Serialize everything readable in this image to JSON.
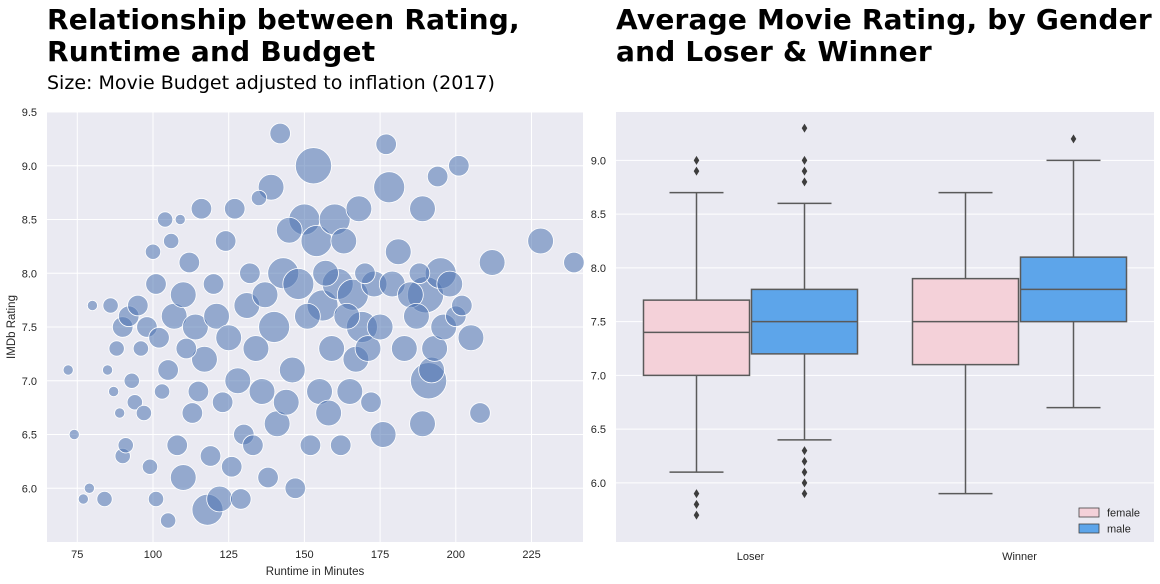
{
  "left": {
    "title_line1": "Relationship between Rating,",
    "title_line2": "Runtime and Budget",
    "subtitle": "Size: Movie Budget adjusted to inflation (2017)"
  },
  "right": {
    "title_line1": "Average Movie Rating, by Gender",
    "title_line2": "and Loser & Winner"
  },
  "colors": {
    "background": "#eaeaf2",
    "grid": "#ffffff",
    "scatter_point": "#4c72b0",
    "female": "#f4d1d9",
    "male": "#5da5ea",
    "box_edge": "#5a5a5a"
  },
  "chart_data": [
    {
      "type": "scatter",
      "title": "Relationship between Rating, Runtime and Budget",
      "subtitle": "Size: Movie Budget adjusted to inflation (2017)",
      "xlabel": "Runtime in Minutes",
      "ylabel": "IMDb Rating",
      "xlim": [
        65,
        242
      ],
      "ylim": [
        5.5,
        9.5
      ],
      "xticks": [
        75,
        100,
        125,
        150,
        175,
        200,
        225
      ],
      "yticks": [
        6.0,
        6.5,
        7.0,
        7.5,
        8.0,
        8.5,
        9.0,
        9.5
      ],
      "grid": true,
      "size_encoding": "budget",
      "points": [
        [
          72,
          7.1,
          1
        ],
        [
          74,
          6.5,
          1
        ],
        [
          77,
          5.9,
          1
        ],
        [
          79,
          6.0,
          1
        ],
        [
          80,
          7.7,
          1
        ],
        [
          84,
          5.9,
          2
        ],
        [
          85,
          7.1,
          1
        ],
        [
          86,
          7.7,
          2
        ],
        [
          87,
          6.9,
          1
        ],
        [
          88,
          7.3,
          2
        ],
        [
          89,
          6.7,
          1
        ],
        [
          90,
          6.3,
          2
        ],
        [
          90,
          7.5,
          3
        ],
        [
          91,
          6.4,
          2
        ],
        [
          92,
          7.6,
          3
        ],
        [
          93,
          7.0,
          2
        ],
        [
          94,
          6.8,
          2
        ],
        [
          95,
          7.7,
          3
        ],
        [
          96,
          7.3,
          2
        ],
        [
          97,
          6.7,
          2
        ],
        [
          98,
          7.5,
          3
        ],
        [
          99,
          6.2,
          2
        ],
        [
          100,
          8.2,
          2
        ],
        [
          101,
          7.9,
          3
        ],
        [
          101,
          5.9,
          2
        ],
        [
          102,
          7.4,
          3
        ],
        [
          103,
          6.9,
          2
        ],
        [
          104,
          8.5,
          2
        ],
        [
          105,
          7.1,
          3
        ],
        [
          105,
          5.7,
          2
        ],
        [
          106,
          8.3,
          2
        ],
        [
          107,
          7.6,
          4
        ],
        [
          108,
          6.4,
          3
        ],
        [
          109,
          8.5,
          1
        ],
        [
          110,
          7.8,
          4
        ],
        [
          110,
          6.1,
          4
        ],
        [
          111,
          7.3,
          3
        ],
        [
          112,
          8.1,
          3
        ],
        [
          113,
          6.7,
          3
        ],
        [
          114,
          7.5,
          4
        ],
        [
          115,
          6.9,
          3
        ],
        [
          116,
          8.6,
          3
        ],
        [
          117,
          7.2,
          4
        ],
        [
          118,
          5.8,
          5
        ],
        [
          119,
          6.3,
          3
        ],
        [
          120,
          7.9,
          3
        ],
        [
          121,
          7.6,
          4
        ],
        [
          122,
          5.9,
          4
        ],
        [
          123,
          6.8,
          3
        ],
        [
          124,
          8.3,
          3
        ],
        [
          125,
          7.4,
          4
        ],
        [
          126,
          6.2,
          3
        ],
        [
          127,
          8.6,
          3
        ],
        [
          128,
          7.0,
          4
        ],
        [
          129,
          5.9,
          3
        ],
        [
          130,
          6.5,
          3
        ],
        [
          131,
          7.7,
          4
        ],
        [
          132,
          8.0,
          3
        ],
        [
          133,
          6.4,
          3
        ],
        [
          134,
          7.3,
          4
        ],
        [
          135,
          8.7,
          2
        ],
        [
          136,
          6.9,
          4
        ],
        [
          137,
          7.8,
          4
        ],
        [
          138,
          6.1,
          3
        ],
        [
          139,
          8.8,
          4
        ],
        [
          140,
          7.5,
          5
        ],
        [
          141,
          6.6,
          4
        ],
        [
          142,
          9.3,
          3
        ],
        [
          143,
          8.0,
          5
        ],
        [
          144,
          6.8,
          4
        ],
        [
          145,
          8.4,
          4
        ],
        [
          146,
          7.1,
          4
        ],
        [
          147,
          6.0,
          3
        ],
        [
          148,
          7.9,
          5
        ],
        [
          150,
          8.5,
          5
        ],
        [
          151,
          7.6,
          4
        ],
        [
          152,
          6.4,
          3
        ],
        [
          153,
          9.0,
          6
        ],
        [
          154,
          8.3,
          5
        ],
        [
          155,
          6.9,
          4
        ],
        [
          156,
          7.7,
          5
        ],
        [
          157,
          8.0,
          4
        ],
        [
          158,
          6.7,
          4
        ],
        [
          159,
          7.3,
          4
        ],
        [
          160,
          8.5,
          5
        ],
        [
          161,
          7.9,
          5
        ],
        [
          162,
          6.4,
          3
        ],
        [
          163,
          8.3,
          4
        ],
        [
          164,
          7.6,
          4
        ],
        [
          165,
          6.9,
          4
        ],
        [
          166,
          7.8,
          5
        ],
        [
          167,
          7.2,
          4
        ],
        [
          168,
          8.6,
          4
        ],
        [
          169,
          7.5,
          5
        ],
        [
          170,
          8.0,
          3
        ],
        [
          171,
          7.3,
          4
        ],
        [
          172,
          6.8,
          3
        ],
        [
          173,
          7.9,
          4
        ],
        [
          175,
          7.5,
          4
        ],
        [
          176,
          6.5,
          4
        ],
        [
          177,
          9.2,
          3
        ],
        [
          178,
          8.8,
          5
        ],
        [
          179,
          7.9,
          4
        ],
        [
          181,
          8.2,
          4
        ],
        [
          183,
          7.3,
          4
        ],
        [
          185,
          7.8,
          4
        ],
        [
          187,
          7.6,
          4
        ],
        [
          188,
          8.0,
          3
        ],
        [
          189,
          8.6,
          4
        ],
        [
          189,
          6.6,
          4
        ],
        [
          190,
          7.8,
          6
        ],
        [
          191,
          7.0,
          6
        ],
        [
          192,
          7.1,
          4
        ],
        [
          193,
          7.3,
          4
        ],
        [
          194,
          8.9,
          3
        ],
        [
          195,
          8.0,
          5
        ],
        [
          196,
          7.5,
          4
        ],
        [
          198,
          7.9,
          4
        ],
        [
          200,
          7.6,
          3
        ],
        [
          201,
          9.0,
          3
        ],
        [
          202,
          7.7,
          3
        ],
        [
          205,
          7.4,
          4
        ],
        [
          208,
          6.7,
          3
        ],
        [
          212,
          8.1,
          4
        ],
        [
          228,
          8.3,
          4
        ],
        [
          239,
          8.1,
          3
        ]
      ]
    },
    {
      "type": "box",
      "title": "Average Movie Rating, by Gender and Loser & Winner",
      "categories": [
        "Loser",
        "Winner"
      ],
      "ylim": [
        5.45,
        9.45
      ],
      "yticks": [
        6.0,
        6.5,
        7.0,
        7.5,
        8.0,
        8.5,
        9.0
      ],
      "grid": true,
      "legend_position": "bottom-right",
      "series": [
        {
          "name": "female",
          "color": "#f4d1d9",
          "boxes": [
            {
              "category": "Loser",
              "whisker_low": 6.1,
              "q1": 7.0,
              "median": 7.4,
              "q3": 7.7,
              "whisker_high": 8.7,
              "outliers": [
                9.0,
                8.9,
                5.9,
                5.8,
                5.7
              ]
            },
            {
              "category": "Winner",
              "whisker_low": 5.9,
              "q1": 7.1,
              "median": 7.5,
              "q3": 7.9,
              "whisker_high": 8.7,
              "outliers": []
            }
          ]
        },
        {
          "name": "male",
          "color": "#5da5ea",
          "boxes": [
            {
              "category": "Loser",
              "whisker_low": 6.4,
              "q1": 7.2,
              "median": 7.5,
              "q3": 7.8,
              "whisker_high": 8.6,
              "outliers": [
                9.3,
                9.0,
                8.9,
                8.8,
                6.3,
                6.2,
                6.1,
                6.0,
                5.9
              ]
            },
            {
              "category": "Winner",
              "whisker_low": 6.7,
              "q1": 7.5,
              "median": 7.8,
              "q3": 8.1,
              "whisker_high": 9.0,
              "outliers": [
                9.2
              ]
            }
          ]
        }
      ],
      "legend": [
        "female",
        "male"
      ]
    }
  ]
}
